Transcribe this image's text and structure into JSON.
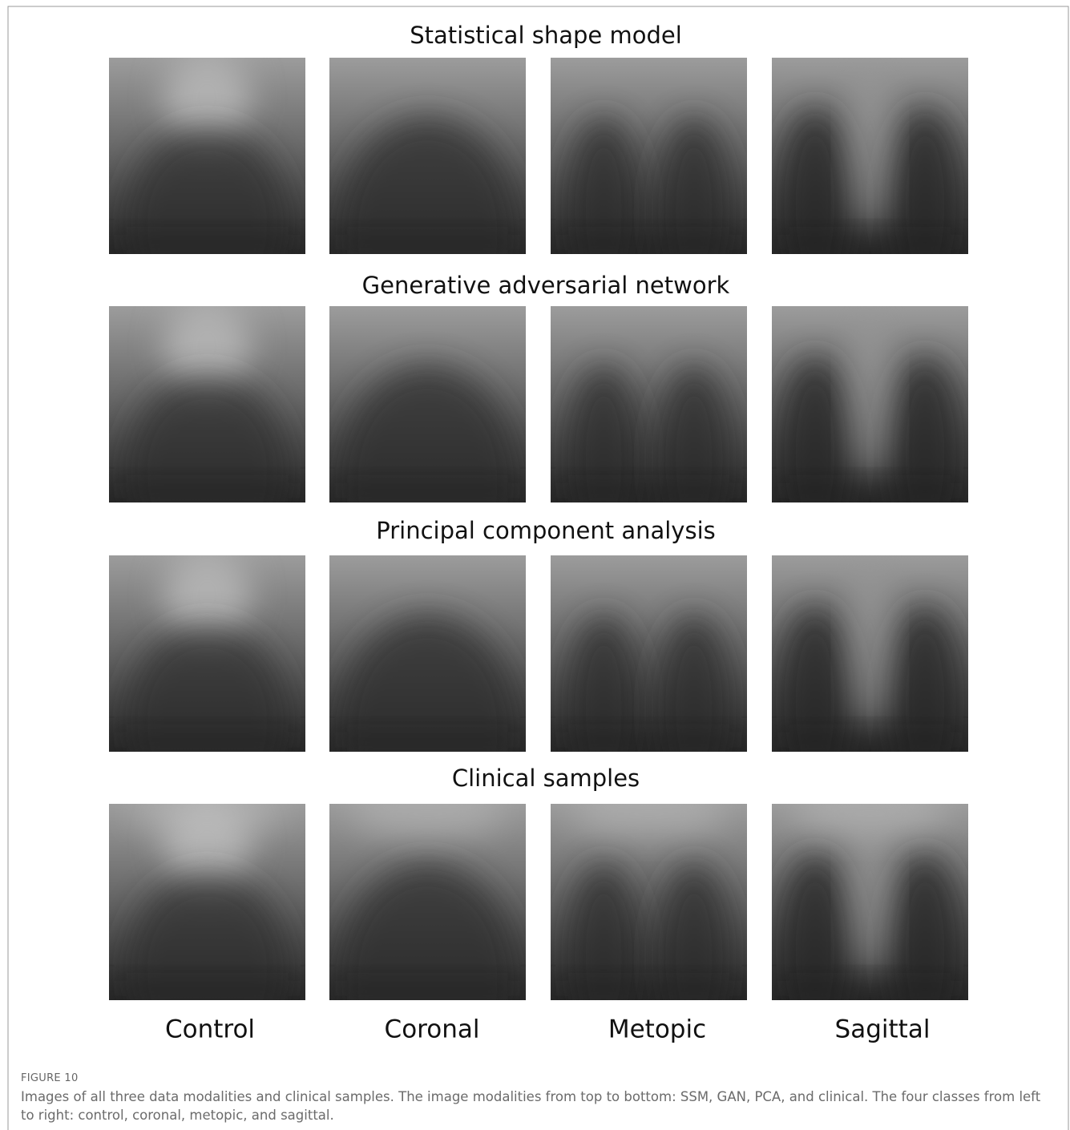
{
  "figure": {
    "rows": [
      {
        "title": "Statistical shape model"
      },
      {
        "title": "Generative adversarial network"
      },
      {
        "title": "Principal component analysis"
      },
      {
        "title": "Clinical samples"
      }
    ],
    "columns": [
      "Control",
      "Coronal",
      "Metopic",
      "Sagittal"
    ],
    "label": "FIGURE 10",
    "caption": "Images of all three data modalities and clinical samples. The image modalities from top to bottom: SSM, GAN, PCA, and clinical. The four classes from left to right: control, coronal, metopic, and sagittal."
  }
}
